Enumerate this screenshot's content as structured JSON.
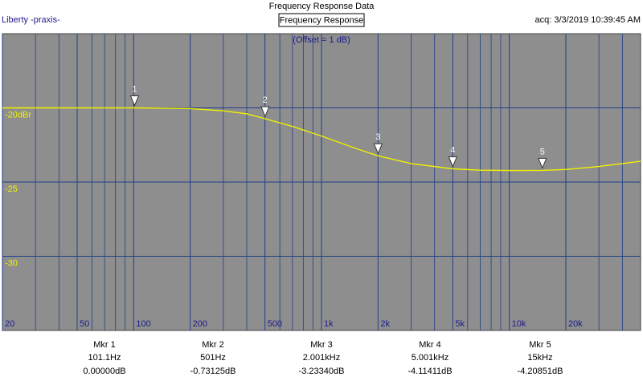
{
  "header": {
    "title": "Frequency Response Data",
    "left": "Liberty -praxis-",
    "right": "acq: 3/3/2019 10:39:45 AM"
  },
  "chart_data": {
    "type": "line",
    "title": "Frequency Response",
    "subtitle": "(Offset = 1 dB)",
    "log_x": true,
    "grid": true,
    "xlim": [
      20,
      50000
    ],
    "xticks": [
      20,
      50,
      100,
      200,
      500,
      {
        "value": 1000,
        "label": "1k"
      },
      {
        "value": 2000,
        "label": "2k"
      },
      {
        "value": 5000,
        "label": "5k"
      },
      {
        "value": 10000,
        "label": "10k"
      },
      {
        "value": 20000,
        "label": "20k"
      }
    ],
    "xgrid_minor": [
      30,
      40,
      60,
      70,
      80,
      90,
      300,
      400,
      600,
      700,
      800,
      900,
      3000,
      4000,
      6000,
      7000,
      8000,
      9000,
      30000,
      40000
    ],
    "ylim": [
      -35,
      -15
    ],
    "yticks": [
      {
        "value": -20,
        "label": "-20dBr"
      },
      -25,
      -30
    ],
    "series": [
      {
        "name": "Frequency Response",
        "color": "#f2f200",
        "x": [
          20,
          30,
          50,
          100,
          200,
          300,
          400,
          501,
          700,
          1000,
          1500,
          2001,
          3000,
          5001,
          7000,
          10000,
          15000,
          20000,
          30000,
          40000,
          50000
        ],
        "values": [
          -20.0,
          -20.0,
          -20.0,
          -20.0,
          -20.05,
          -20.2,
          -20.4,
          -20.73,
          -21.25,
          -21.9,
          -22.7,
          -23.23,
          -23.75,
          -24.11,
          -24.2,
          -24.22,
          -24.21,
          -24.15,
          -23.95,
          -23.75,
          -23.6
        ]
      }
    ],
    "markers": [
      {
        "label": "1",
        "name": "Mkr 1",
        "x": 101.1,
        "x_label": "101.1Hz",
        "level": 0,
        "level_label": "0.00000dB"
      },
      {
        "label": "2",
        "name": "Mkr 2",
        "x": 501,
        "x_label": "501Hz",
        "level": -0.73125,
        "level_label": "-0.73125dB"
      },
      {
        "label": "3",
        "name": "Mkr 3",
        "x": 2001,
        "x_label": "2.001kHz",
        "level": -3.2334,
        "level_label": "-3.23340dB"
      },
      {
        "label": "4",
        "name": "Mkr 4",
        "x": 5001,
        "x_label": "5.001kHz",
        "level": -4.11411,
        "level_label": "-4.11411dB"
      },
      {
        "label": "5",
        "name": "Mkr 5",
        "x": 15000,
        "x_label": "15kHz",
        "level": -4.20851,
        "level_label": "-4.20851dB"
      }
    ]
  }
}
